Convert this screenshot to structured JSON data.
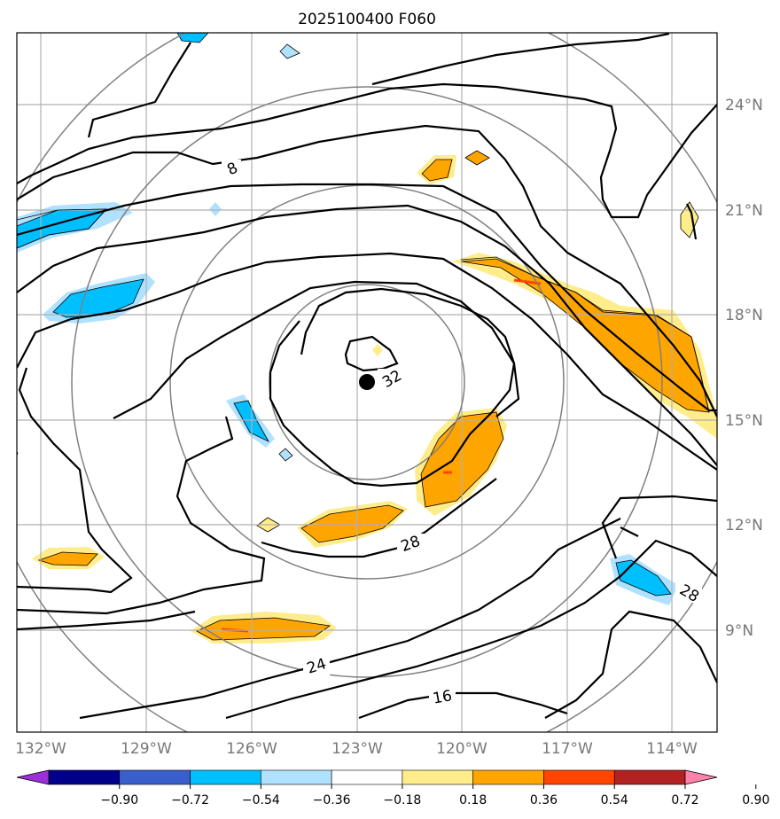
{
  "title": "2025100400 F060",
  "lon_labels": [
    "132°W",
    "129°W",
    "126°W",
    "123°W",
    "120°W",
    "117°W",
    "114°W"
  ],
  "lat_labels": [
    "24°N",
    "21°N",
    "18°N",
    "15°N",
    "12°N",
    "9°N"
  ],
  "contour_labels": [
    "8",
    "32",
    "28",
    "24",
    "16",
    "28"
  ],
  "colorbar": {
    "ticks": [
      "−0.90",
      "−0.72",
      "−0.54",
      "−0.36",
      "−0.18",
      "0.18",
      "0.36",
      "0.54",
      "0.72",
      "0.90"
    ],
    "colors": [
      "#9b30d9",
      "#00008b",
      "#3a5fcd",
      "#00bfff",
      "#b0e2ff",
      "#ffffff",
      "#ffec8b",
      "#ffa500",
      "#ff4500",
      "#b22222",
      "#ff82ab"
    ]
  },
  "storm_center": {
    "lon": -122.8,
    "lat": 16.1
  }
}
